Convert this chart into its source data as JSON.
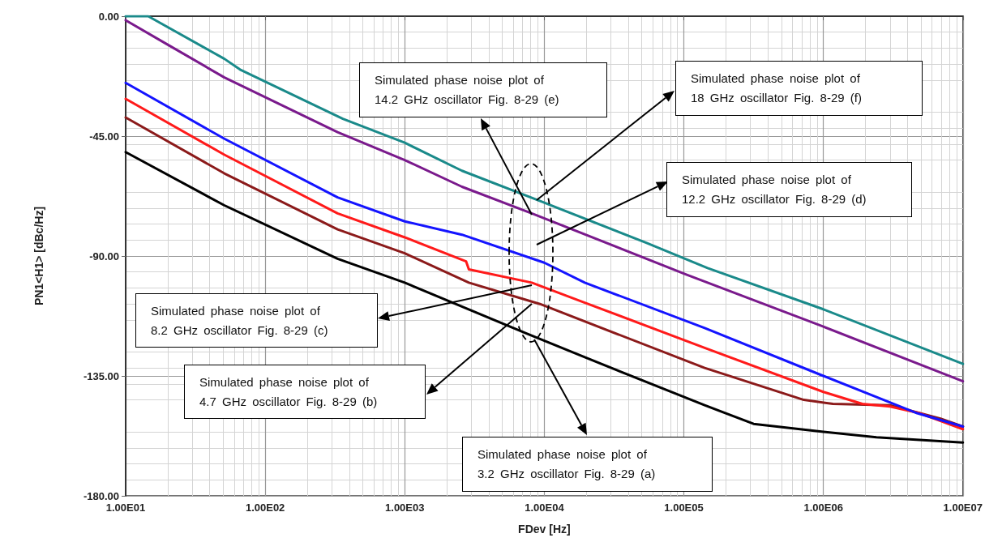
{
  "chart_data": {
    "type": "line",
    "xlabel": "FDev [Hz]",
    "ylabel": "PN1<H1> [dBc/Hz]",
    "log": "x",
    "grid": true,
    "marker": "none",
    "line_style": "solid",
    "xlim": [
      10,
      10000000
    ],
    "xticks": [
      {
        "value": 10,
        "label": "1.00E01"
      },
      {
        "value": 100,
        "label": "1.00E02"
      },
      {
        "value": 1000,
        "label": "1.00E03"
      },
      {
        "value": 10000,
        "label": "1.00E04"
      },
      {
        "value": 100000,
        "label": "1.00E05"
      },
      {
        "value": 1000000,
        "label": "1.00E06"
      },
      {
        "value": 10000000,
        "label": "1.00E07"
      }
    ],
    "ylim": [
      -180,
      0
    ],
    "yticks": [
      {
        "value": -180,
        "label": "-180.00"
      },
      {
        "value": -135,
        "label": "-135.00"
      },
      {
        "value": -90,
        "label": "-90.00"
      },
      {
        "value": -45,
        "label": "-45.00"
      },
      {
        "value": 0,
        "label": "0.00"
      }
    ],
    "series": [
      {
        "color": "#000000",
        "x": [
          10,
          51,
          330,
          1000,
          7400,
          19500,
          141000,
          316000,
          1000000,
          2400000,
          10000000
        ],
        "values": [
          -51,
          -71,
          -91,
          -100,
          -119,
          -128,
          -146,
          -153,
          -156,
          -158,
          -160
        ]
      },
      {
        "color": "#8b1a1a",
        "x": [
          10,
          51,
          330,
          1000,
          2880,
          9300,
          141000,
          724000,
          1170000,
          3000000,
          6900000,
          10000000
        ],
        "values": [
          -38,
          -59,
          -80,
          -89,
          -100,
          -108,
          -132,
          -144,
          -145.5,
          -146,
          -151,
          -154
        ]
      },
      {
        "color": "#ff1a1a",
        "x": [
          10,
          51,
          330,
          1000,
          2750,
          2880,
          8130,
          19500,
          141000,
          1000000,
          1900000,
          3000000,
          4900000,
          10000000
        ],
        "values": [
          -31,
          -52,
          -74,
          -83,
          -92,
          -95,
          -100,
          -107.5,
          -124.5,
          -141,
          -145.5,
          -146.5,
          -149,
          -155
        ]
      },
      {
        "color": "#1414ff",
        "x": [
          10,
          51,
          330,
          1000,
          2570,
          10000,
          19500,
          141000,
          1000000,
          4700000,
          10000000
        ],
        "values": [
          -25,
          -46,
          -68,
          -77,
          -82,
          -92.5,
          -100,
          -117,
          -135,
          -149,
          -154
        ]
      },
      {
        "color": "#7a1a8c",
        "x": [
          10,
          19,
          51,
          330,
          1000,
          2570,
          8130,
          105000,
          1000000,
          10000000
        ],
        "values": [
          -1.5,
          -10,
          -23,
          -43.5,
          -54,
          -64,
          -74,
          -97,
          -116.5,
          -137
        ]
      },
      {
        "color": "#1a8a8a",
        "x": [
          10,
          14.5,
          51,
          66,
          360,
          1000,
          2570,
          10000,
          53700,
          148000,
          1000000,
          10000000
        ],
        "values": [
          0,
          0,
          -16,
          -20,
          -38.5,
          -47.5,
          -58,
          -70,
          -85,
          -94.5,
          -110,
          -130.5
        ]
      }
    ],
    "annotations": [
      "Simulated phase noise plot of\n14.2 GHz oscillator Fig. 8-29 (e)",
      "Simulated phase noise plot of\n18 GHz oscillator Fig. 8-29 (f)",
      "Simulated phase noise plot of\n12.2 GHz oscillator Fig. 8-29 (d)",
      "Simulated phase noise plot of\n8.2 GHz oscillator Fig. 8-29 (c)",
      "Simulated phase noise plot of\n4.7 GHz oscillator Fig. 8-29 (b)",
      "Simulated phase noise plot of\n3.2 GHz oscillator Fig. 8-29 (a)"
    ]
  }
}
